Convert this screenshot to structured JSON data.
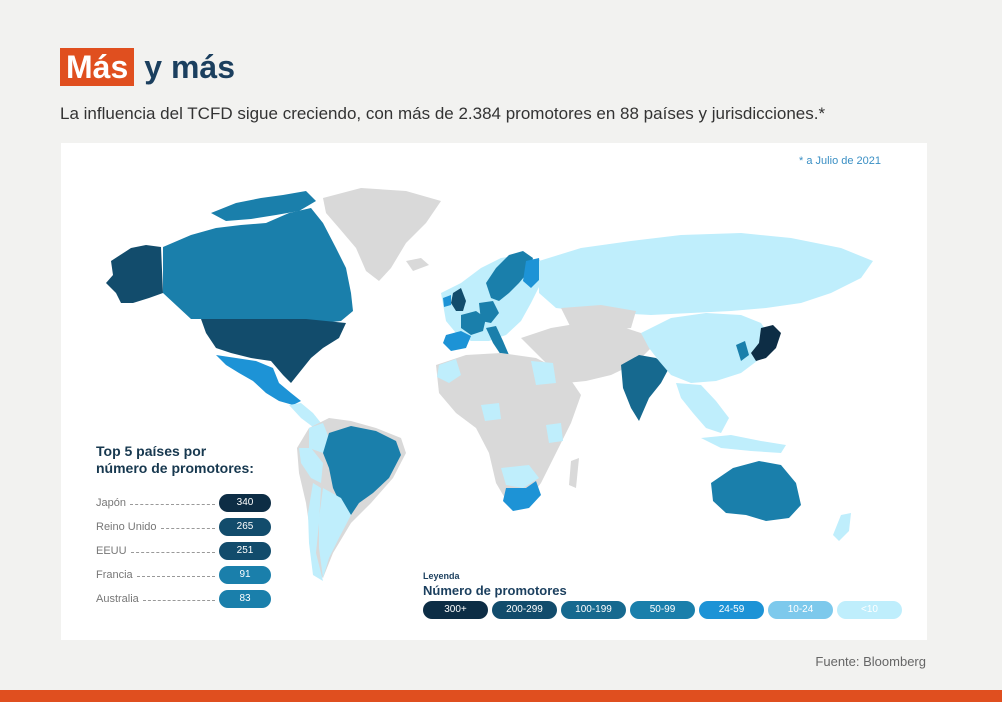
{
  "header": {
    "title_highlight": "Más",
    "title_rest": "y más",
    "subtitle": "La influencia del TCFD sigue creciendo, con más de 2.384 promotores en 88 países y jurisdicciones.*"
  },
  "map": {
    "footnote": "* a Julio de 2021",
    "colors": {
      "300+": "#0d2d45",
      "200-299": "#124c6c",
      "100-199": "#16698f",
      "50-99": "#1a7fab",
      "24-59": "#1d93d6",
      "10-24": "#7dc9ec",
      "<10": "#bfeefc",
      "none": "#d9d9d9"
    }
  },
  "top5": {
    "title_line1": "Top 5 países por",
    "title_line2": "número de promotores:",
    "items": [
      {
        "country": "Japón",
        "value": "340",
        "color": "#0d2d45"
      },
      {
        "country": "Reino Unido",
        "value": "265",
        "color": "#124c6c"
      },
      {
        "country": "EEUU",
        "value": "251",
        "color": "#124c6c"
      },
      {
        "country": "Francia",
        "value": "91",
        "color": "#1a7fab"
      },
      {
        "country": "Australia",
        "value": "83",
        "color": "#1a7fab"
      }
    ]
  },
  "legend": {
    "small_label": "Leyenda",
    "title": "Número de promotores",
    "items": [
      {
        "label": "300+",
        "color": "#0d2d45",
        "text_color": "#ffffff"
      },
      {
        "label": "200-299",
        "color": "#124c6c",
        "text_color": "#ffffff"
      },
      {
        "label": "100-199",
        "color": "#16698f",
        "text_color": "#ffffff"
      },
      {
        "label": "50-99",
        "color": "#1a7fab",
        "text_color": "#ffffff"
      },
      {
        "label": "24-59",
        "color": "#1d93d6",
        "text_color": "#ffffff"
      },
      {
        "label": "10-24",
        "color": "#7dc9ec",
        "text_color": "#ffffff"
      },
      {
        "label": "<10",
        "color": "#bfeefc",
        "text_color": "#ffffff"
      }
    ]
  },
  "source": "Fuente: Bloomberg"
}
